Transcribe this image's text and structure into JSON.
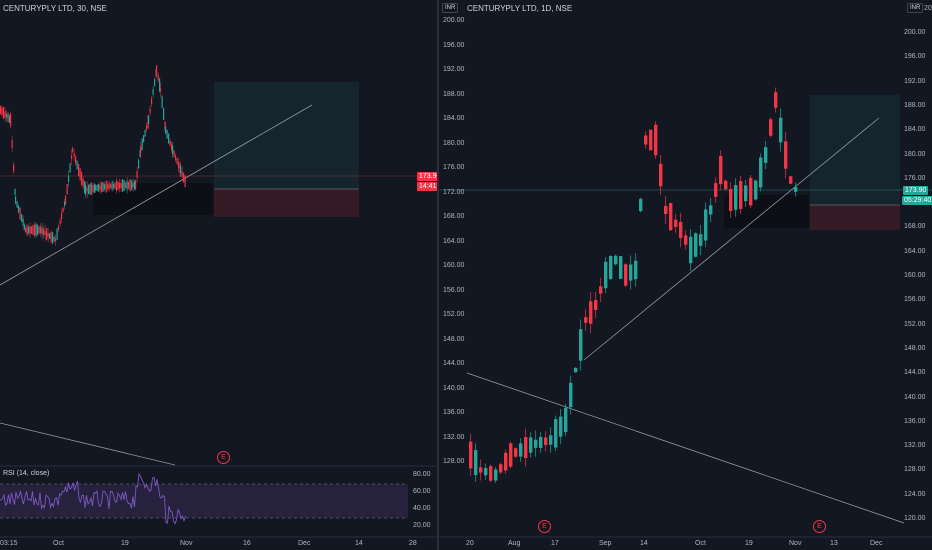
{
  "left_chart": {
    "title": "CENTURYPLY LTD, 30, NSE",
    "price_tag": "173.90",
    "time_tag": "14:41",
    "x_ticks": [
      "03:15",
      "Oct",
      "19",
      "Nov",
      "16",
      "Dec",
      "14",
      "28"
    ],
    "rsi_label": "RSI (14, close)",
    "rsi_ticks": [
      "80.00",
      "60.00",
      "40.00",
      "20.00"
    ],
    "event_marker": "E"
  },
  "right_chart": {
    "title": "CENTURYPLY LTD, 1D, NSE",
    "currency": "INR",
    "left_currency": "INR",
    "y_ticks_left": [
      "200.00",
      "196.00",
      "192.00",
      "188.00",
      "184.00",
      "180.00",
      "176.00",
      "172.00",
      "168.00",
      "164.00",
      "160.00",
      "156.00",
      "152.00",
      "148.00",
      "144.00",
      "140.00",
      "136.00",
      "132.00",
      "128.00"
    ],
    "y_ticks_right": [
      "200.00",
      "196.00",
      "192.00",
      "188.00",
      "184.00",
      "180.00",
      "176.00",
      "172.00",
      "168.00",
      "164.00",
      "160.00",
      "156.00",
      "152.00",
      "148.00",
      "144.00",
      "140.00",
      "136.00",
      "132.00",
      "128.00",
      "124.00",
      "120.00"
    ],
    "top_right_partial": "20",
    "price_tag": "173.90",
    "countdown_tag": "05:29:40",
    "x_ticks": [
      "20",
      "Aug",
      "17",
      "Sep",
      "14",
      "Oct",
      "19",
      "Nov",
      "13",
      "Dec"
    ],
    "event_markers": [
      "E",
      "E"
    ]
  },
  "colors": {
    "background": "#131722",
    "up": "#26a69a",
    "down": "#f23645",
    "rsi": "#7e57c2",
    "grid": "#1e222d"
  }
}
